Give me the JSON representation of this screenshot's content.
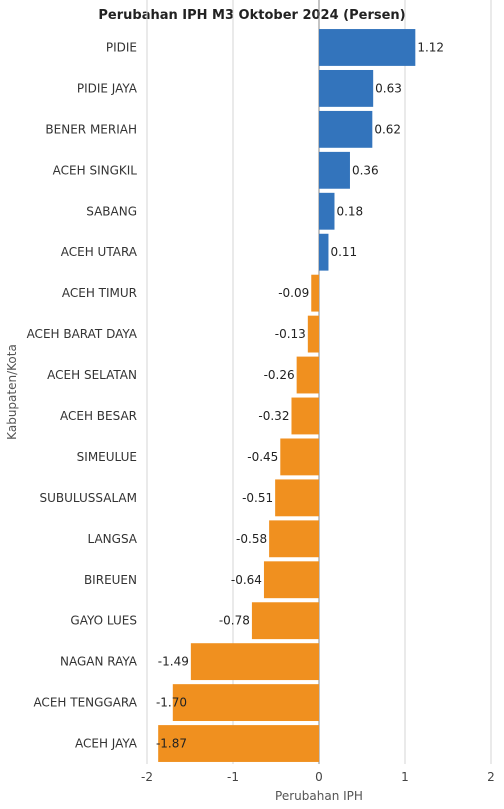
{
  "chart_data": {
    "type": "bar",
    "orientation": "horizontal",
    "title": "Perubahan IPH M3 Oktober 2024 (Persen)",
    "xlabel": "Perubahan IPH",
    "ylabel": "Kabupaten/Kota",
    "xlim": [
      -2,
      2
    ],
    "xticks": [
      -2,
      -1,
      0,
      1,
      2
    ],
    "grid": true,
    "colors": {
      "positive": "#3374bc",
      "negative": "#f0901f"
    },
    "categories": [
      "PIDIE",
      "PIDIE JAYA",
      "BENER MERIAH",
      "ACEH SINGKIL",
      "SABANG",
      "ACEH UTARA",
      "ACEH TIMUR",
      "ACEH BARAT DAYA",
      "ACEH SELATAN",
      "ACEH BESAR",
      "SIMEULUE",
      "SUBULUSSALAM",
      "LANGSA",
      "BIREUEN",
      "GAYO LUES",
      "NAGAN RAYA",
      "ACEH TENGGARA",
      "ACEH JAYA"
    ],
    "values": [
      1.12,
      0.63,
      0.62,
      0.36,
      0.18,
      0.11,
      -0.09,
      -0.13,
      -0.26,
      -0.32,
      -0.45,
      -0.51,
      -0.58,
      -0.64,
      -0.78,
      -1.49,
      -1.7,
      -1.87
    ],
    "value_labels": [
      "1.12",
      "0.63",
      "0.62",
      "0.36",
      "0.18",
      "0.11",
      "-0.09",
      "-0.13",
      "-0.26",
      "-0.32",
      "-0.45",
      "-0.51",
      "-0.58",
      "-0.64",
      "-0.78",
      "-1.49",
      "-1.70",
      "-1.87"
    ]
  }
}
